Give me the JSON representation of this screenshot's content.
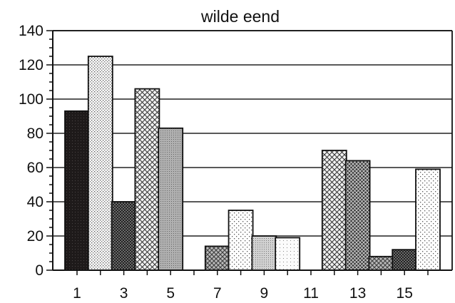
{
  "chart_data": {
    "type": "bar",
    "title": "wilde eend",
    "xlabel": "",
    "ylabel": "",
    "ylim": [
      0,
      140
    ],
    "yticks": [
      0,
      20,
      40,
      60,
      80,
      100,
      120,
      140
    ],
    "x_tick_labels": [
      "1",
      "3",
      "5",
      "7",
      "9",
      "11",
      "13",
      "15"
    ],
    "categories": [
      "1",
      "2",
      "3",
      "4",
      "5",
      "6",
      "7",
      "8",
      "9",
      "10",
      "11",
      "12",
      "13",
      "14",
      "15",
      "16"
    ],
    "values": [
      93,
      125,
      40,
      106,
      83,
      0,
      14,
      35,
      20,
      19,
      0,
      70,
      64,
      8,
      12,
      59
    ],
    "grid": true,
    "legend": "none"
  }
}
